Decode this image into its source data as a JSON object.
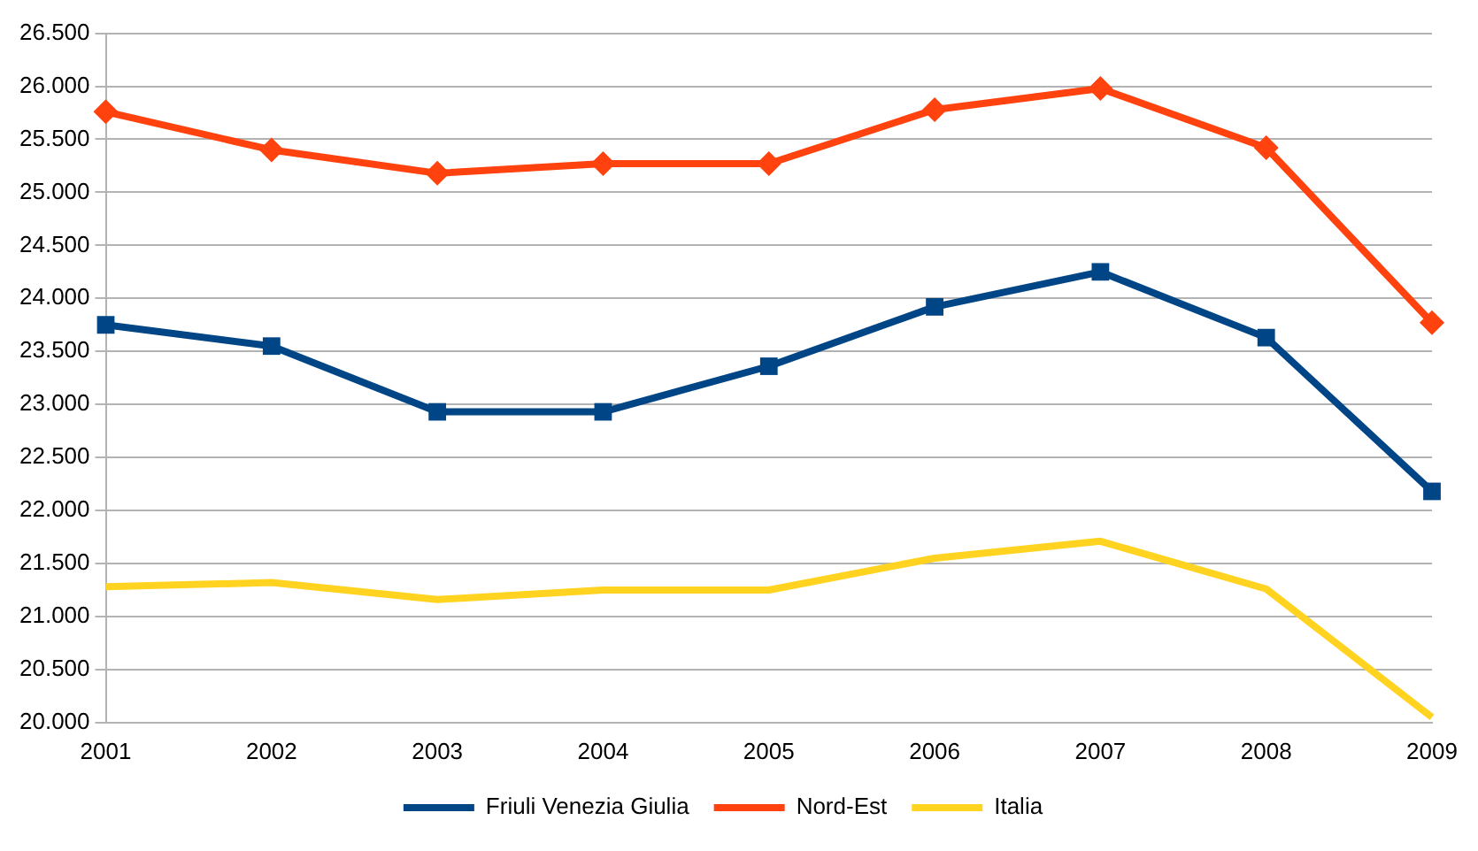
{
  "chart_data": {
    "type": "line",
    "categories": [
      "2001",
      "2002",
      "2003",
      "2004",
      "2005",
      "2006",
      "2007",
      "2008",
      "2009"
    ],
    "series": [
      {
        "name": "Friuli Venezia Giulia",
        "color": "#004586",
        "marker": "square",
        "values": [
          23750,
          23550,
          22930,
          22930,
          23360,
          23920,
          24250,
          23630,
          22180
        ]
      },
      {
        "name": "Nord-Est",
        "color": "#ff420e",
        "marker": "diamond",
        "values": [
          25760,
          25400,
          25180,
          25270,
          25270,
          25780,
          25980,
          25420,
          23770
        ]
      },
      {
        "name": "Italia",
        "color": "#ffd320",
        "marker": "none",
        "values": [
          21280,
          21320,
          21160,
          21250,
          21250,
          21550,
          21710,
          21260,
          20050
        ]
      }
    ],
    "ylim": [
      20000,
      26500
    ],
    "yticks": [
      {
        "value": 20000,
        "label": "20.000"
      },
      {
        "value": 20500,
        "label": "20.500"
      },
      {
        "value": 21000,
        "label": "21.000"
      },
      {
        "value": 21500,
        "label": "21.500"
      },
      {
        "value": 22000,
        "label": "22.000"
      },
      {
        "value": 22500,
        "label": "22.500"
      },
      {
        "value": 23000,
        "label": "23.000"
      },
      {
        "value": 23500,
        "label": "23.500"
      },
      {
        "value": 24000,
        "label": "24.000"
      },
      {
        "value": 24500,
        "label": "24.500"
      },
      {
        "value": 25000,
        "label": "25.000"
      },
      {
        "value": 25500,
        "label": "25.500"
      },
      {
        "value": 26000,
        "label": "26.000"
      },
      {
        "value": 26500,
        "label": "26.500"
      }
    ],
    "grid": "y",
    "legend": "bottom",
    "line_style": "solid"
  }
}
